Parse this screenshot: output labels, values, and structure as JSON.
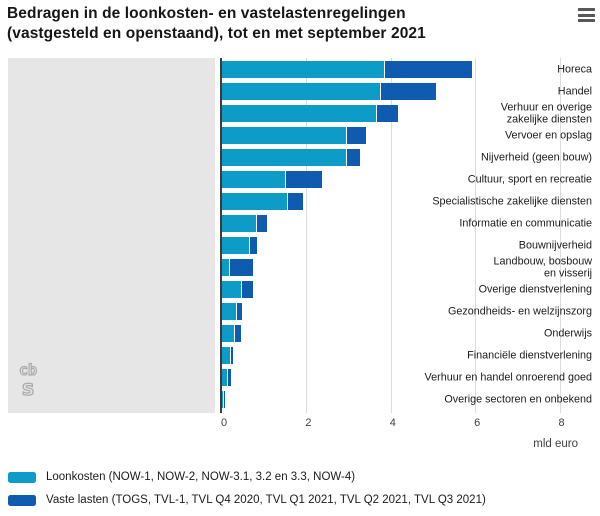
{
  "header": {
    "title_line1": "Bedragen in de loonkosten- en vastelastenregelingen",
    "title_line2": "(vastgesteld en openstaand), tot en met september 2021"
  },
  "colors": {
    "loonkosten": "#0d9bc7",
    "vaste_lasten": "#0f5bb0",
    "gutter_bg": "#e6e6e6",
    "gridline": "#dcdcdc",
    "axis": "#3c3c3c"
  },
  "chart_data": {
    "type": "bar",
    "orientation": "horizontal",
    "stacked": true,
    "title": "Bedragen in de loonkosten- en vastelastenregelingen (vastgesteld en openstaand), tot en met september 2021",
    "xlabel": "mld euro",
    "x_ticks": [
      0,
      2,
      4,
      6,
      8
    ],
    "xlim": [
      0,
      8.9
    ],
    "grid": true,
    "legend_position": "bottom",
    "categories": [
      "Horeca",
      "Handel",
      "Verhuur en overige\nzakelijke diensten",
      "Vervoer en opslag",
      "Nijverheid (geen bouw)",
      "Cultuur, sport en recreatie",
      "Specialistische zakelijke diensten",
      "Informatie en communicatie",
      "Bouwnijverheid",
      "Landbouw, bosbouw\nen visserij",
      "Overige dienstverlening",
      "Gezondheids- en welzijnszorg",
      "Onderwijs",
      "Financiële dienstverlening",
      "Verhuur en handel onroerend goed",
      "Overige sectoren en onbekend"
    ],
    "series": [
      {
        "name": "Loonkosten (NOW-1, NOW-2, NOW-3.1, 3.2 en 3.3, NOW-4)",
        "color": "#0d9bc7",
        "values": [
          3.85,
          3.75,
          3.65,
          2.95,
          2.95,
          1.5,
          1.55,
          0.8,
          0.65,
          0.17,
          0.45,
          0.33,
          0.28,
          0.2,
          0.12,
          0.01
        ]
      },
      {
        "name": "Vaste lasten (TOGS, TVL-1, TVL Q4 2020, TVL Q1 2021, TVL Q2 2021, TVL Q3 2021)",
        "color": "#0f5bb0",
        "values": [
          2.05,
          1.3,
          0.5,
          0.45,
          0.3,
          0.85,
          0.35,
          0.25,
          0.15,
          0.55,
          0.25,
          0.12,
          0.14,
          0.03,
          0.08,
          0.01
        ]
      }
    ]
  },
  "logo": {
    "name": "cbs-logo",
    "text_top": "cb",
    "text_bottom": "s"
  }
}
